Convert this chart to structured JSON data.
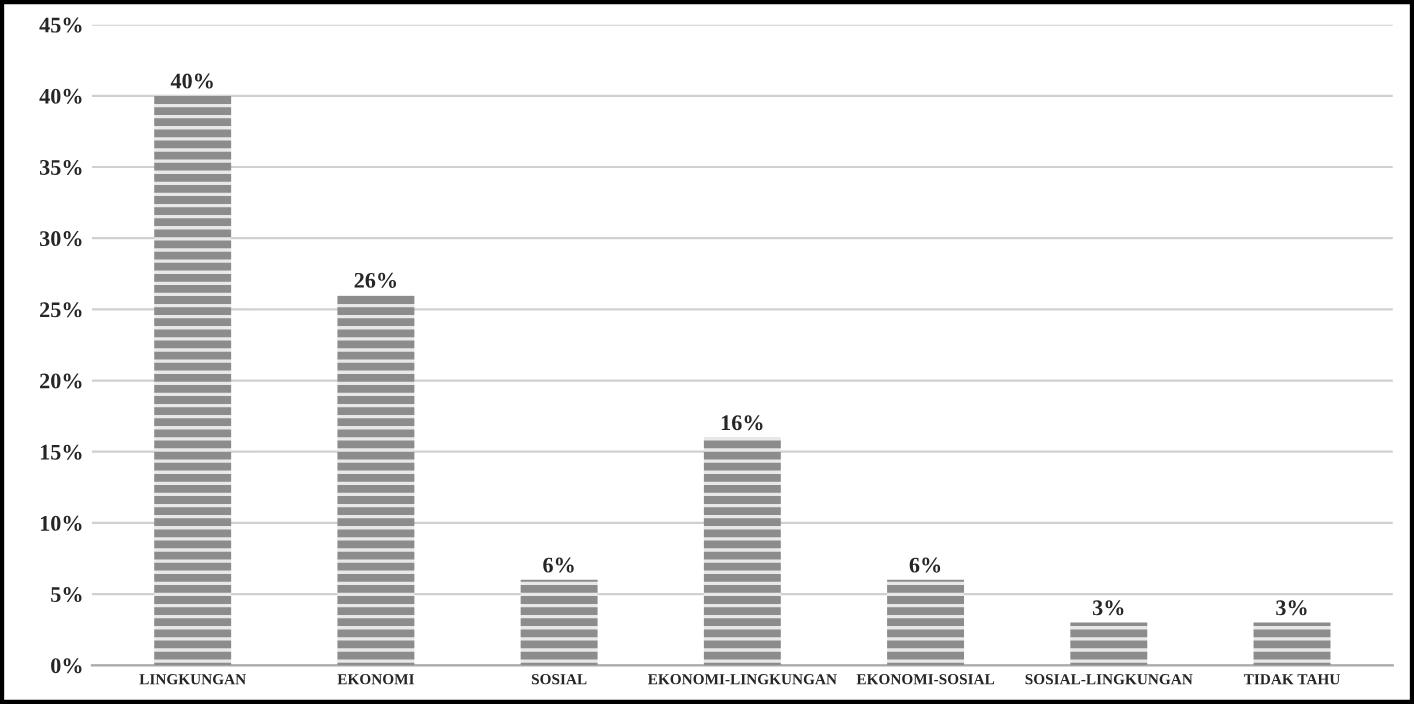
{
  "chart_data": {
    "type": "bar",
    "categories": [
      "LINGKUNGAN",
      "EKONOMI",
      "SOSIAL",
      "EKONOMI-LINGKUNGAN",
      "EKONOMI-SOSIAL",
      "SOSIAL-LINGKUNGAN",
      "TIDAK TAHU"
    ],
    "values": [
      40,
      26,
      6,
      16,
      6,
      3,
      3
    ],
    "value_labels": [
      "40%",
      "26%",
      "6%",
      "16%",
      "6%",
      "3%",
      "3%"
    ],
    "color": "#8c8c8c",
    "ylim": [
      0,
      45
    ],
    "yticks": [
      {
        "value": 0,
        "label": "0%"
      },
      {
        "value": 5,
        "label": "5%"
      },
      {
        "value": 10,
        "label": "10%"
      },
      {
        "value": 15,
        "label": "15%"
      },
      {
        "value": 20,
        "label": "20%"
      },
      {
        "value": 25,
        "label": "25%"
      },
      {
        "value": 30,
        "label": "30%"
      },
      {
        "value": 35,
        "label": "35%"
      },
      {
        "value": 40,
        "label": "40%"
      },
      {
        "value": 45,
        "label": "45%"
      }
    ],
    "grid": "y"
  }
}
